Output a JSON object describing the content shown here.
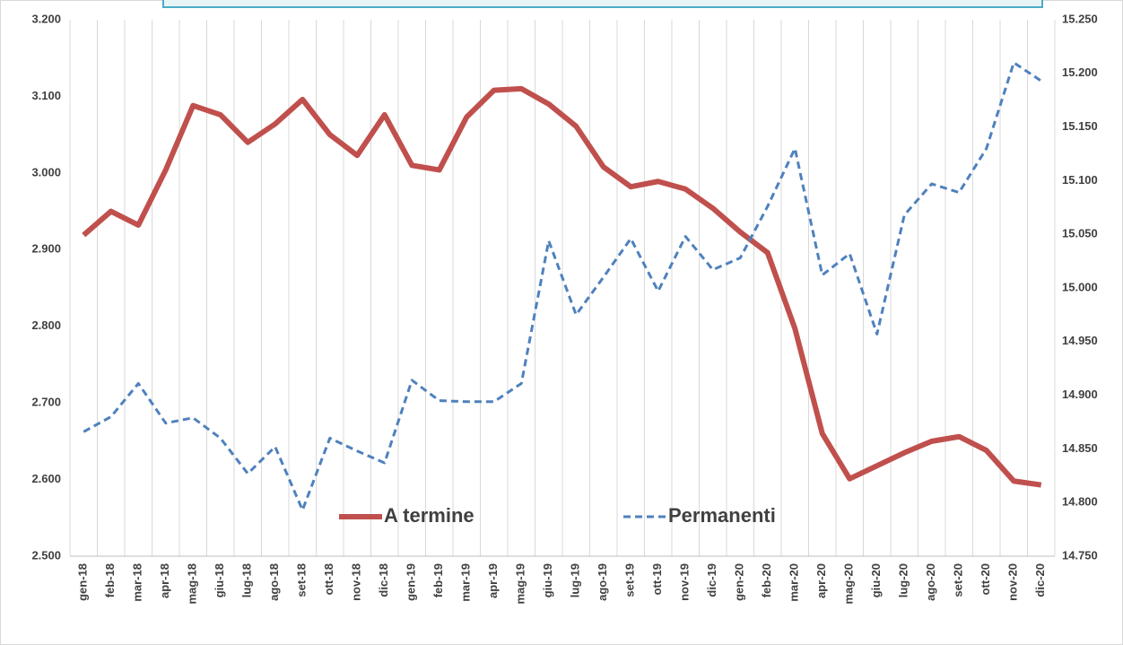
{
  "chart_data": {
    "type": "line",
    "categories": [
      "gen-18",
      "feb-18",
      "mar-18",
      "apr-18",
      "mag-18",
      "giu-18",
      "lug-18",
      "ago-18",
      "set-18",
      "ott-18",
      "nov-18",
      "dic-18",
      "gen-19",
      "feb-19",
      "mar-19",
      "apr-19",
      "mag-19",
      "giu-19",
      "lug-19",
      "ago-19",
      "set-19",
      "ott-19",
      "nov-19",
      "dic-19",
      "gen-20",
      "feb-20",
      "mar-20",
      "apr-20",
      "mag-20",
      "giu-20",
      "lug-20",
      "ago-20",
      "set-20",
      "ott-20",
      "nov-20",
      "dic-20"
    ],
    "series": [
      {
        "name": "A termine",
        "color": "#c0504d",
        "dash": false,
        "values": [
          2919,
          2950,
          2932,
          3004,
          3088,
          3076,
          3040,
          3064,
          3096,
          3050,
          3023,
          3076,
          3010,
          3004,
          3073,
          3108,
          3110,
          3090,
          3061,
          3008,
          2982,
          2989,
          2979,
          2954,
          2923,
          2896,
          2797,
          2660,
          2601,
          2618,
          2635,
          2650,
          2656,
          2638,
          2598,
          2593
        ]
      },
      {
        "name": "Permanenti",
        "color": "#4f81bd",
        "dash": true,
        "axis": "y2",
        "values": [
          14866,
          14880,
          14911,
          14874,
          14879,
          14860,
          14827,
          14852,
          14793,
          14860,
          14848,
          14837,
          14914,
          14895,
          14894,
          14894,
          14911,
          15044,
          14975,
          15010,
          15046,
          14997,
          15048,
          15017,
          15028,
          15076,
          15130,
          15012,
          15032,
          14957,
          15068,
          15097,
          15089,
          15130,
          15210,
          15193
        ]
      }
    ],
    "ylim": [
      2500,
      3200
    ],
    "yticks": [
      {
        "value": 2500,
        "label": "2.500"
      },
      {
        "value": 2600,
        "label": "2.600"
      },
      {
        "value": 2700,
        "label": "2.700"
      },
      {
        "value": 2800,
        "label": "2.800"
      },
      {
        "value": 2900,
        "label": "2.900"
      },
      {
        "value": 3000,
        "label": "3.000"
      },
      {
        "value": 3100,
        "label": "3.100"
      },
      {
        "value": 3200,
        "label": "3.200"
      }
    ],
    "y2lim": [
      14750,
      15250
    ],
    "y2ticks": [
      {
        "value": 14750,
        "label": "14.750"
      },
      {
        "value": 14800,
        "label": "14.800"
      },
      {
        "value": 14850,
        "label": "14.850"
      },
      {
        "value": 14900,
        "label": "14.900"
      },
      {
        "value": 14950,
        "label": "14.950"
      },
      {
        "value": 15000,
        "label": "15.000"
      },
      {
        "value": 15050,
        "label": "15.050"
      },
      {
        "value": 15100,
        "label": "15.100"
      },
      {
        "value": 15150,
        "label": "15.150"
      },
      {
        "value": 15200,
        "label": "15.200"
      },
      {
        "value": 15250,
        "label": "15.250"
      }
    ],
    "grid": true
  }
}
